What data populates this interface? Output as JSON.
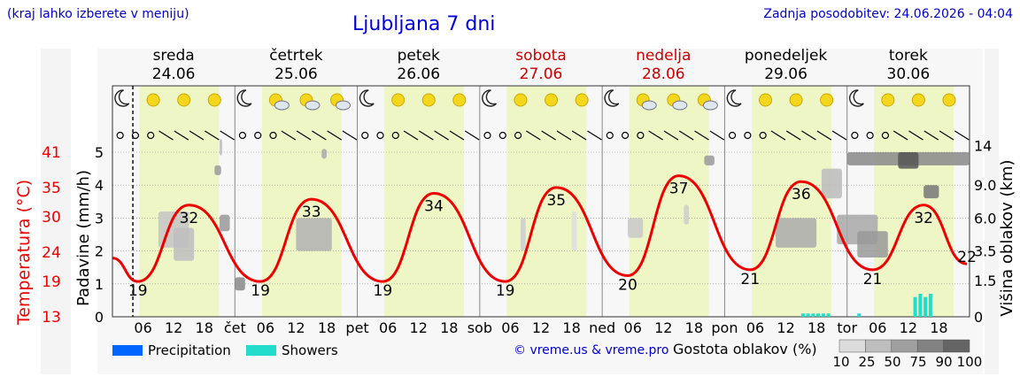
{
  "header": {
    "hint": "(kraj lahko izberete v meniju)",
    "title": "Ljubljana 7 dni",
    "updated": "Zadnja posodobitev: 24.06.2026 - 04:04"
  },
  "days": [
    {
      "name": "sreda",
      "date": "24.06",
      "weekend": false
    },
    {
      "name": "četrtek",
      "date": "25.06",
      "weekend": false
    },
    {
      "name": "petek",
      "date": "26.06",
      "weekend": false
    },
    {
      "name": "sobota",
      "date": "27.06",
      "weekend": true
    },
    {
      "name": "nedelja",
      "date": "28.06",
      "weekend": true
    },
    {
      "name": "ponedeljek",
      "date": "29.06",
      "weekend": false
    },
    {
      "name": "torek",
      "date": "30.06",
      "weekend": false
    }
  ],
  "colors": {
    "temperature": "#ee0000",
    "weekend": "#cc0000",
    "daylight": "#eef6c6",
    "night": "#ffffff",
    "precip": "#0066ff",
    "showers": "#22ddcc",
    "title": "#0000dd"
  },
  "chart_data": {
    "type": "line",
    "xaxis": {
      "hour_ticks": [
        "06",
        "12",
        "18"
      ],
      "day_abbr": [
        "čet",
        "pet",
        "sob",
        "ned",
        "pon",
        "tor"
      ]
    },
    "yaxis_left": {
      "label": "Padavine (mm/h)",
      "ticks": [
        "0",
        "1",
        "2",
        "3",
        "4",
        "5"
      ],
      "range": [
        0,
        5
      ]
    },
    "yaxis_temp": {
      "label": "Temperatura (°C)",
      "ticks": [
        "13",
        "19",
        "24",
        "30",
        "35",
        "41"
      ],
      "range": [
        13,
        41
      ]
    },
    "yaxis_right": {
      "label": "Višina oblakov (km)",
      "ticks": [
        "0",
        "1.5",
        "3.5",
        "6.0",
        "9.0",
        "14"
      ]
    },
    "series": [
      {
        "name": "Temperatura",
        "extrema": [
          {
            "kind": "min",
            "value": 19
          },
          {
            "kind": "max",
            "value": 32
          },
          {
            "kind": "min",
            "value": 19
          },
          {
            "kind": "max",
            "value": 33
          },
          {
            "kind": "min",
            "value": 19
          },
          {
            "kind": "max",
            "value": 34
          },
          {
            "kind": "min",
            "value": 19
          },
          {
            "kind": "max",
            "value": 35
          },
          {
            "kind": "min",
            "value": 20
          },
          {
            "kind": "max",
            "value": 37
          },
          {
            "kind": "min",
            "value": 21
          },
          {
            "kind": "max",
            "value": 36
          },
          {
            "kind": "min",
            "value": 21
          },
          {
            "kind": "max",
            "value": 32
          },
          {
            "kind": "last",
            "value": 22
          }
        ]
      }
    ],
    "showers": [
      {
        "day": 5,
        "hour": 15,
        "mm": 0.1
      },
      {
        "day": 5,
        "hour": 16,
        "mm": 0.1
      },
      {
        "day": 5,
        "hour": 17,
        "mm": 0.1
      },
      {
        "day": 5,
        "hour": 18,
        "mm": 0.1
      },
      {
        "day": 5,
        "hour": 19,
        "mm": 0.1
      },
      {
        "day": 5,
        "hour": 20,
        "mm": 0.1
      },
      {
        "day": 6,
        "hour": 2,
        "mm": 0.1
      },
      {
        "day": 6,
        "hour": 13,
        "mm": 0.6
      },
      {
        "day": 6,
        "hour": 14,
        "mm": 0.7
      },
      {
        "day": 6,
        "hour": 15,
        "mm": 0.6
      },
      {
        "day": 6,
        "hour": 16,
        "mm": 0.7
      }
    ]
  },
  "legend": {
    "precip": "Precipitation",
    "showers": "Showers",
    "credit": "© vreme.us & vreme.pro",
    "cloud_title": "Gostota oblakov (%)",
    "cloud_ticks": [
      "10",
      "25",
      "50",
      "75",
      "90",
      "100"
    ]
  }
}
